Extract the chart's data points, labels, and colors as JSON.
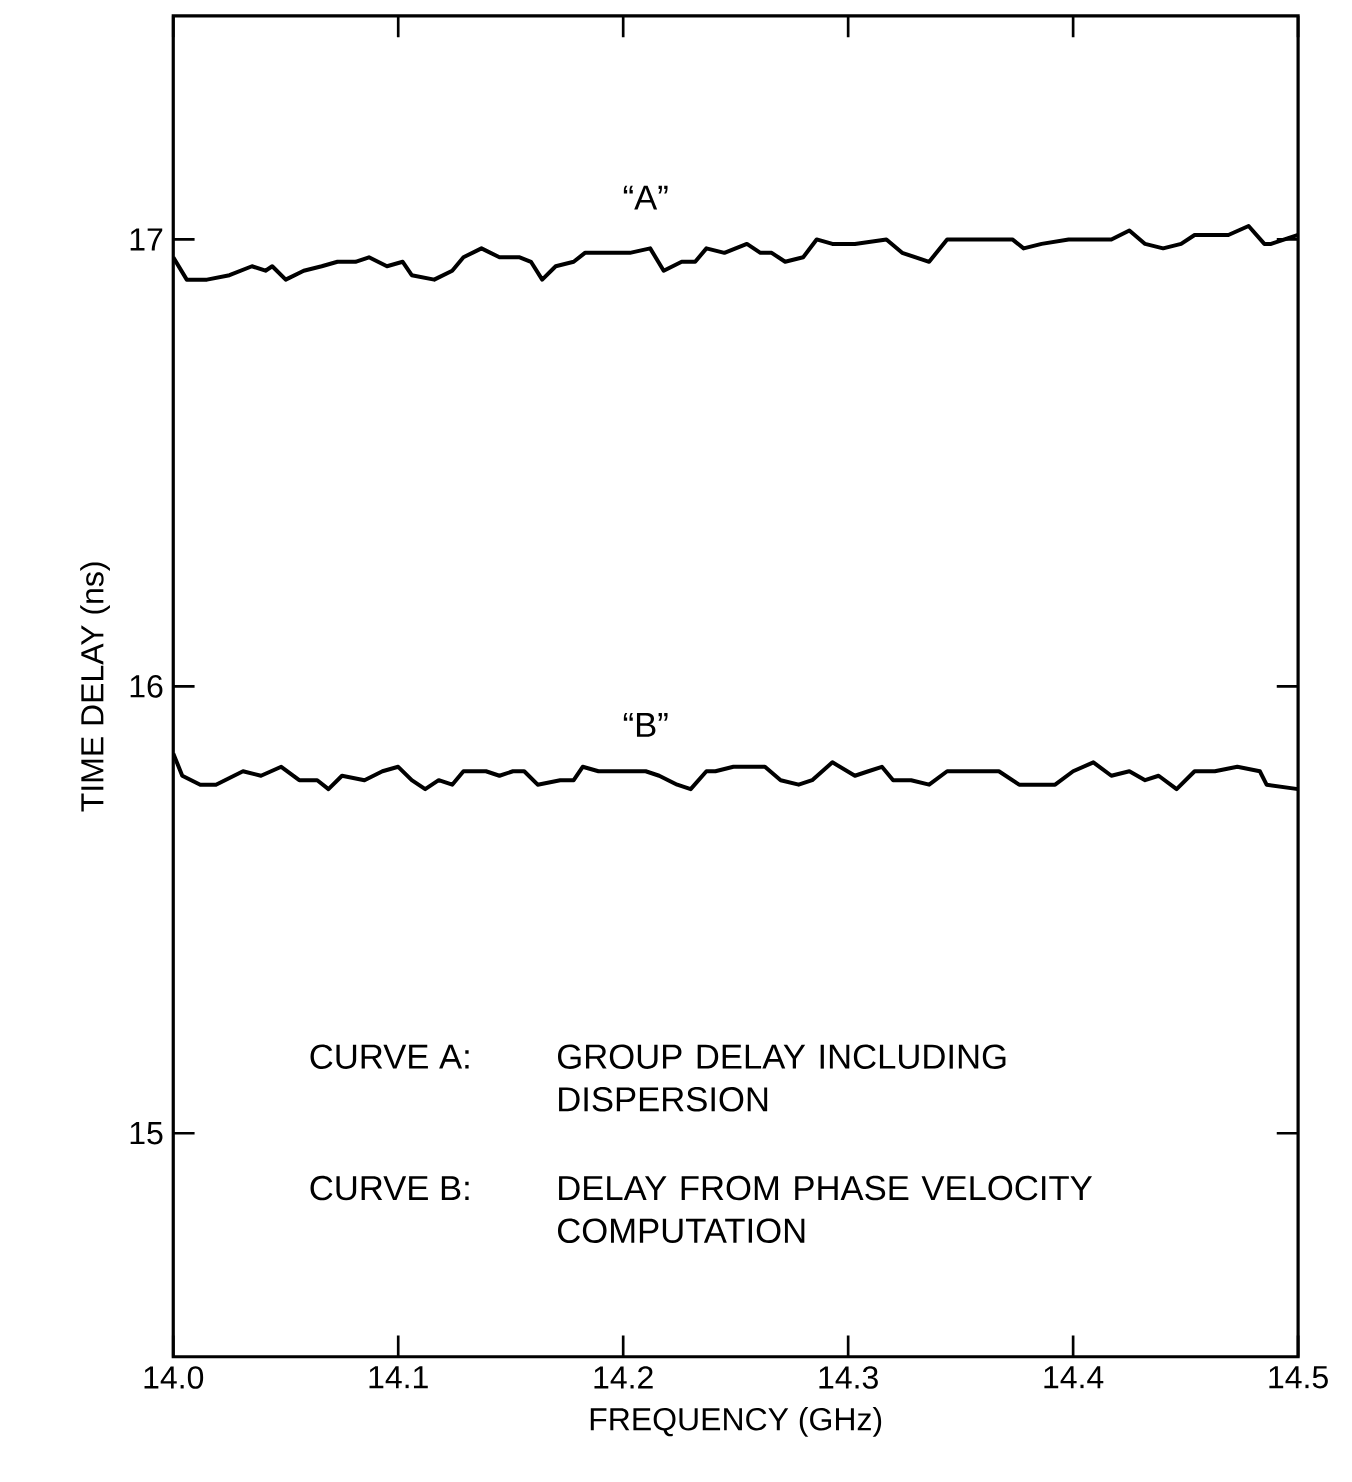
{
  "chart_data": {
    "type": "line",
    "xlabel": "FREQUENCY (GHz)",
    "ylabel": "TIME DELAY (ns)",
    "xlim": [
      14.0,
      14.5
    ],
    "ylim": [
      14.5,
      17.5
    ],
    "xticks": [
      {
        "value": 14.0,
        "label": "14.0"
      },
      {
        "value": 14.1,
        "label": "14.1"
      },
      {
        "value": 14.2,
        "label": "14.2"
      },
      {
        "value": 14.3,
        "label": "14.3"
      },
      {
        "value": 14.4,
        "label": "14.4"
      },
      {
        "value": 14.5,
        "label": "14.5"
      }
    ],
    "yticks": [
      15,
      16,
      17
    ],
    "grid": false,
    "legend": false,
    "marker": "none",
    "line_style": "solid",
    "series": [
      {
        "name": "“A”",
        "color": "#000000",
        "x": [
          14.0,
          14.006,
          14.015,
          14.025,
          14.035,
          14.041,
          14.044,
          14.05,
          14.058,
          14.066,
          14.073,
          14.081,
          14.087,
          14.095,
          14.102,
          14.106,
          14.116,
          14.124,
          14.129,
          14.137,
          14.145,
          14.154,
          14.159,
          14.164,
          14.17,
          14.178,
          14.183,
          14.193,
          14.203,
          14.212,
          14.218,
          14.226,
          14.232,
          14.237,
          14.245,
          14.255,
          14.261,
          14.266,
          14.272,
          14.28,
          14.286,
          14.293,
          14.303,
          14.317,
          14.324,
          14.336,
          14.344,
          14.351,
          14.363,
          14.373,
          14.378,
          14.386,
          14.398,
          14.409,
          14.417,
          14.425,
          14.432,
          14.44,
          14.448,
          14.454,
          14.463,
          14.469,
          14.478,
          14.485,
          14.488,
          14.494,
          14.5
        ],
        "values": [
          16.96,
          16.91,
          16.91,
          16.92,
          16.94,
          16.93,
          16.94,
          16.91,
          16.93,
          16.94,
          16.95,
          16.95,
          16.96,
          16.94,
          16.95,
          16.92,
          16.91,
          16.93,
          16.96,
          16.98,
          16.96,
          16.96,
          16.95,
          16.91,
          16.94,
          16.95,
          16.97,
          16.97,
          16.97,
          16.98,
          16.93,
          16.95,
          16.95,
          16.98,
          16.97,
          16.99,
          16.97,
          16.97,
          16.95,
          16.96,
          17.0,
          16.99,
          16.99,
          17.0,
          16.97,
          16.95,
          17.0,
          17.0,
          17.0,
          17.0,
          16.98,
          16.99,
          17.0,
          17.0,
          17.0,
          17.02,
          16.99,
          16.98,
          16.99,
          17.01,
          17.01,
          17.01,
          17.03,
          16.99,
          16.99,
          17.0,
          17.01
        ]
      },
      {
        "name": "“B”",
        "color": "#000000",
        "x": [
          14.0,
          14.004,
          14.012,
          14.019,
          14.031,
          14.039,
          14.048,
          14.056,
          14.064,
          14.069,
          14.075,
          14.085,
          14.093,
          14.1,
          14.106,
          14.112,
          14.118,
          14.124,
          14.129,
          14.139,
          14.145,
          14.151,
          14.156,
          14.162,
          14.172,
          14.178,
          14.182,
          14.189,
          14.195,
          14.201,
          14.21,
          14.216,
          14.224,
          14.23,
          14.237,
          14.241,
          14.249,
          14.263,
          14.27,
          14.278,
          14.284,
          14.293,
          14.303,
          14.309,
          14.315,
          14.32,
          14.328,
          14.336,
          14.344,
          14.355,
          14.367,
          14.376,
          14.384,
          14.392,
          14.4,
          14.409,
          14.417,
          14.425,
          14.432,
          14.438,
          14.446,
          14.454,
          14.463,
          14.473,
          14.483,
          14.486,
          14.5
        ],
        "values": [
          15.85,
          15.8,
          15.78,
          15.78,
          15.81,
          15.8,
          15.82,
          15.79,
          15.79,
          15.77,
          15.8,
          15.79,
          15.81,
          15.82,
          15.79,
          15.77,
          15.79,
          15.78,
          15.81,
          15.81,
          15.8,
          15.81,
          15.81,
          15.78,
          15.79,
          15.79,
          15.82,
          15.81,
          15.81,
          15.81,
          15.81,
          15.8,
          15.78,
          15.77,
          15.81,
          15.81,
          15.82,
          15.82,
          15.79,
          15.78,
          15.79,
          15.83,
          15.8,
          15.81,
          15.82,
          15.79,
          15.79,
          15.78,
          15.81,
          15.81,
          15.81,
          15.78,
          15.78,
          15.78,
          15.81,
          15.83,
          15.8,
          15.81,
          15.79,
          15.8,
          15.77,
          15.81,
          15.81,
          15.82,
          15.81,
          15.78,
          15.77
        ]
      }
    ],
    "annotations": [
      "CURVE A:",
      "GROUP DELAY INCLUDING DISPERSION",
      "CURVE B:",
      "DELAY FROM PHASE VELOCITY COMPUTATION"
    ]
  }
}
